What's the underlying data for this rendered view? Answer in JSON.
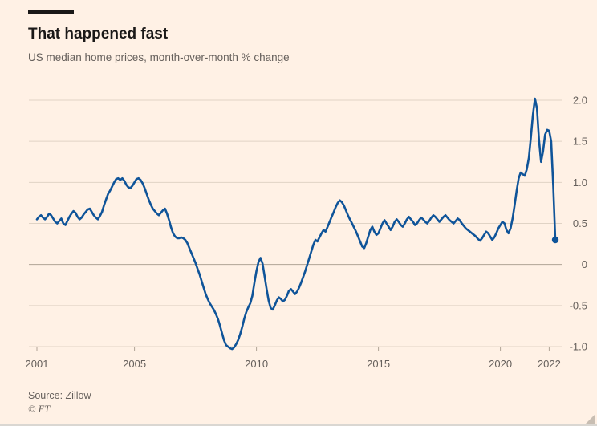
{
  "header": {
    "title": "That happened fast",
    "subtitle": "US median home prices, month-over-month % change"
  },
  "footer": {
    "source": "Source: Zillow",
    "credit": "© FT"
  },
  "colors": {
    "background": "#FFF1E5",
    "line": "#0F5499",
    "title": "#1A1817",
    "muted": "#66605C",
    "grid": "#E0D3C5",
    "zero_line": "#B0A496",
    "tick": "#B0A496"
  },
  "chart_data": {
    "type": "line",
    "title": "That happened fast",
    "subtitle": "US median home prices, month-over-month % change",
    "source": "Zillow",
    "grid": true,
    "legend_position": "none",
    "ylabel": "% change",
    "xlabel": "",
    "ylim": [
      -1.0,
      2.0
    ],
    "x_range": [
      2001,
      2022.25
    ],
    "y_ticks": [
      {
        "value": 2.0,
        "label": "2.0"
      },
      {
        "value": 1.5,
        "label": "1.5"
      },
      {
        "value": 1.0,
        "label": "1.0"
      },
      {
        "value": 0.5,
        "label": "0.5"
      },
      {
        "value": 0,
        "label": "0"
      },
      {
        "value": -0.5,
        "label": "-0.5"
      },
      {
        "value": -1.0,
        "label": "-1.0"
      }
    ],
    "x_ticks": [
      {
        "value": 2001,
        "label": "2001"
      },
      {
        "value": 2005,
        "label": "2005"
      },
      {
        "value": 2010,
        "label": "2010"
      },
      {
        "value": 2015,
        "label": "2015"
      },
      {
        "value": 2020,
        "label": "2020"
      },
      {
        "value": 2022,
        "label": "2022"
      }
    ],
    "series": [
      {
        "name": "US median home prices, month-over-month % change",
        "start_year": 2001,
        "frequency": "monthly",
        "end_marker": true,
        "values": [
          0.55,
          0.58,
          0.6,
          0.57,
          0.55,
          0.58,
          0.62,
          0.6,
          0.56,
          0.52,
          0.5,
          0.53,
          0.56,
          0.5,
          0.48,
          0.53,
          0.58,
          0.62,
          0.65,
          0.63,
          0.58,
          0.55,
          0.57,
          0.61,
          0.64,
          0.67,
          0.68,
          0.64,
          0.6,
          0.57,
          0.55,
          0.59,
          0.64,
          0.72,
          0.79,
          0.86,
          0.9,
          0.95,
          1.0,
          1.04,
          1.05,
          1.03,
          1.05,
          1.02,
          0.97,
          0.94,
          0.93,
          0.96,
          1.0,
          1.04,
          1.05,
          1.03,
          0.99,
          0.93,
          0.86,
          0.79,
          0.73,
          0.68,
          0.65,
          0.62,
          0.6,
          0.63,
          0.66,
          0.68,
          0.62,
          0.54,
          0.45,
          0.38,
          0.34,
          0.32,
          0.32,
          0.33,
          0.32,
          0.3,
          0.26,
          0.2,
          0.14,
          0.08,
          0.02,
          -0.05,
          -0.12,
          -0.2,
          -0.28,
          -0.36,
          -0.42,
          -0.47,
          -0.51,
          -0.55,
          -0.6,
          -0.66,
          -0.74,
          -0.83,
          -0.92,
          -0.98,
          -1.0,
          -1.02,
          -1.03,
          -1.01,
          -0.97,
          -0.92,
          -0.85,
          -0.76,
          -0.66,
          -0.58,
          -0.52,
          -0.47,
          -0.38,
          -0.22,
          -0.08,
          0.03,
          0.08,
          0.01,
          -0.14,
          -0.3,
          -0.44,
          -0.53,
          -0.55,
          -0.5,
          -0.44,
          -0.4,
          -0.42,
          -0.45,
          -0.43,
          -0.38,
          -0.32,
          -0.3,
          -0.33,
          -0.36,
          -0.33,
          -0.28,
          -0.22,
          -0.15,
          -0.08,
          0.0,
          0.08,
          0.16,
          0.24,
          0.3,
          0.28,
          0.33,
          0.38,
          0.42,
          0.4,
          0.46,
          0.52,
          0.58,
          0.64,
          0.7,
          0.75,
          0.78,
          0.76,
          0.72,
          0.66,
          0.6,
          0.55,
          0.5,
          0.45,
          0.4,
          0.34,
          0.28,
          0.22,
          0.2,
          0.26,
          0.34,
          0.42,
          0.46,
          0.4,
          0.36,
          0.38,
          0.44,
          0.5,
          0.54,
          0.5,
          0.46,
          0.42,
          0.46,
          0.52,
          0.55,
          0.52,
          0.48,
          0.46,
          0.5,
          0.55,
          0.58,
          0.55,
          0.52,
          0.48,
          0.5,
          0.54,
          0.57,
          0.55,
          0.52,
          0.5,
          0.53,
          0.57,
          0.6,
          0.58,
          0.55,
          0.52,
          0.55,
          0.58,
          0.6,
          0.57,
          0.54,
          0.52,
          0.5,
          0.53,
          0.56,
          0.54,
          0.5,
          0.47,
          0.44,
          0.42,
          0.4,
          0.38,
          0.36,
          0.34,
          0.31,
          0.29,
          0.32,
          0.36,
          0.4,
          0.38,
          0.34,
          0.3,
          0.33,
          0.38,
          0.44,
          0.48,
          0.52,
          0.5,
          0.42,
          0.38,
          0.44,
          0.56,
          0.72,
          0.9,
          1.05,
          1.12,
          1.1,
          1.08,
          1.16,
          1.3,
          1.55,
          1.82,
          2.02,
          1.9,
          1.52,
          1.25,
          1.38,
          1.58,
          1.64,
          1.63,
          1.5,
          0.95,
          0.3
        ]
      }
    ]
  }
}
